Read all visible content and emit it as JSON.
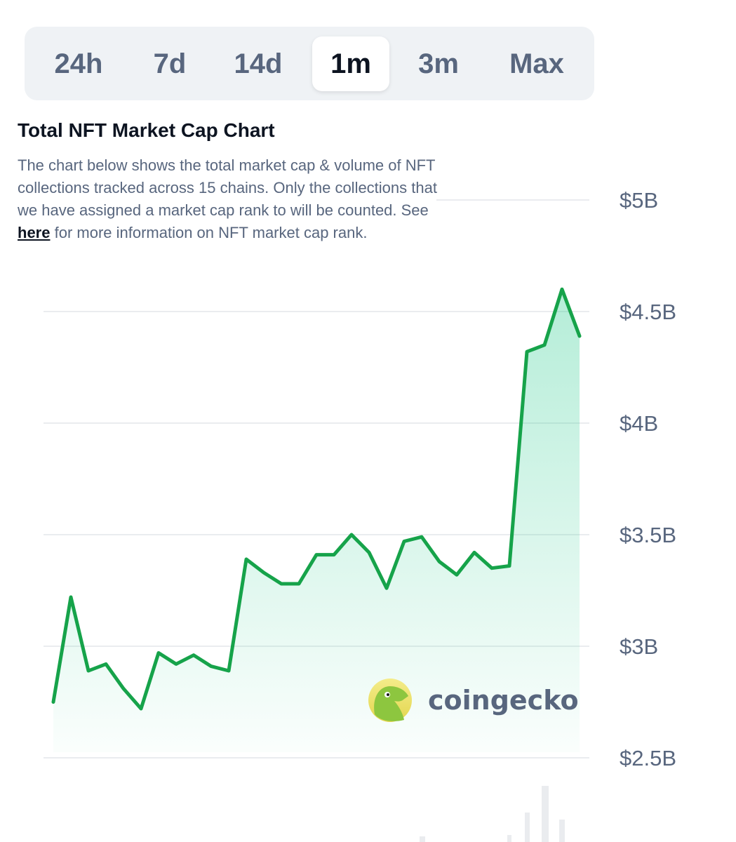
{
  "tabs": [
    {
      "label": "24h",
      "active": false
    },
    {
      "label": "7d",
      "active": false
    },
    {
      "label": "14d",
      "active": false
    },
    {
      "label": "1m",
      "active": true
    },
    {
      "label": "3m",
      "active": false
    },
    {
      "label": "Max",
      "active": false
    }
  ],
  "header": {
    "title": "Total NFT Market Cap Chart",
    "desc_before": "The chart below shows the total market cap & volume of NFT collections tracked across 15 chains. Only the collections that we have assigned a market cap rank to will be counted. See ",
    "desc_link": "here",
    "desc_after": " for more information on NFT market cap rank."
  },
  "watermark": {
    "text": "coingecko",
    "icon": "gecko-logo-icon"
  },
  "colors": {
    "line": "#16a34a",
    "fill": "#16c784",
    "grid": "#eaecef",
    "text": "#58667e"
  },
  "chart_data": {
    "type": "area",
    "title": "Total NFT Market Cap Chart",
    "yticks": [
      {
        "label": "$2.5B",
        "value": 2.5
      },
      {
        "label": "$3B",
        "value": 3.0
      },
      {
        "label": "$3.5B",
        "value": 3.5
      },
      {
        "label": "$4B",
        "value": 4.0
      },
      {
        "label": "$4.5B",
        "value": 4.5
      },
      {
        "label": "$5B",
        "value": 5.0
      }
    ],
    "ylim": [
      2.5,
      5.0
    ],
    "unit": "B USD",
    "grid": true,
    "series": [
      {
        "values": [
          2.75,
          3.22,
          2.89,
          2.92,
          2.81,
          2.72,
          2.97,
          2.92,
          2.96,
          2.91,
          2.89,
          3.39,
          3.33,
          3.28,
          3.28,
          3.41,
          3.41,
          3.5,
          3.42,
          3.26,
          3.47,
          3.49,
          3.38,
          3.32,
          3.42,
          3.35,
          3.36,
          4.32,
          4.35,
          4.6,
          4.39
        ]
      }
    ]
  }
}
